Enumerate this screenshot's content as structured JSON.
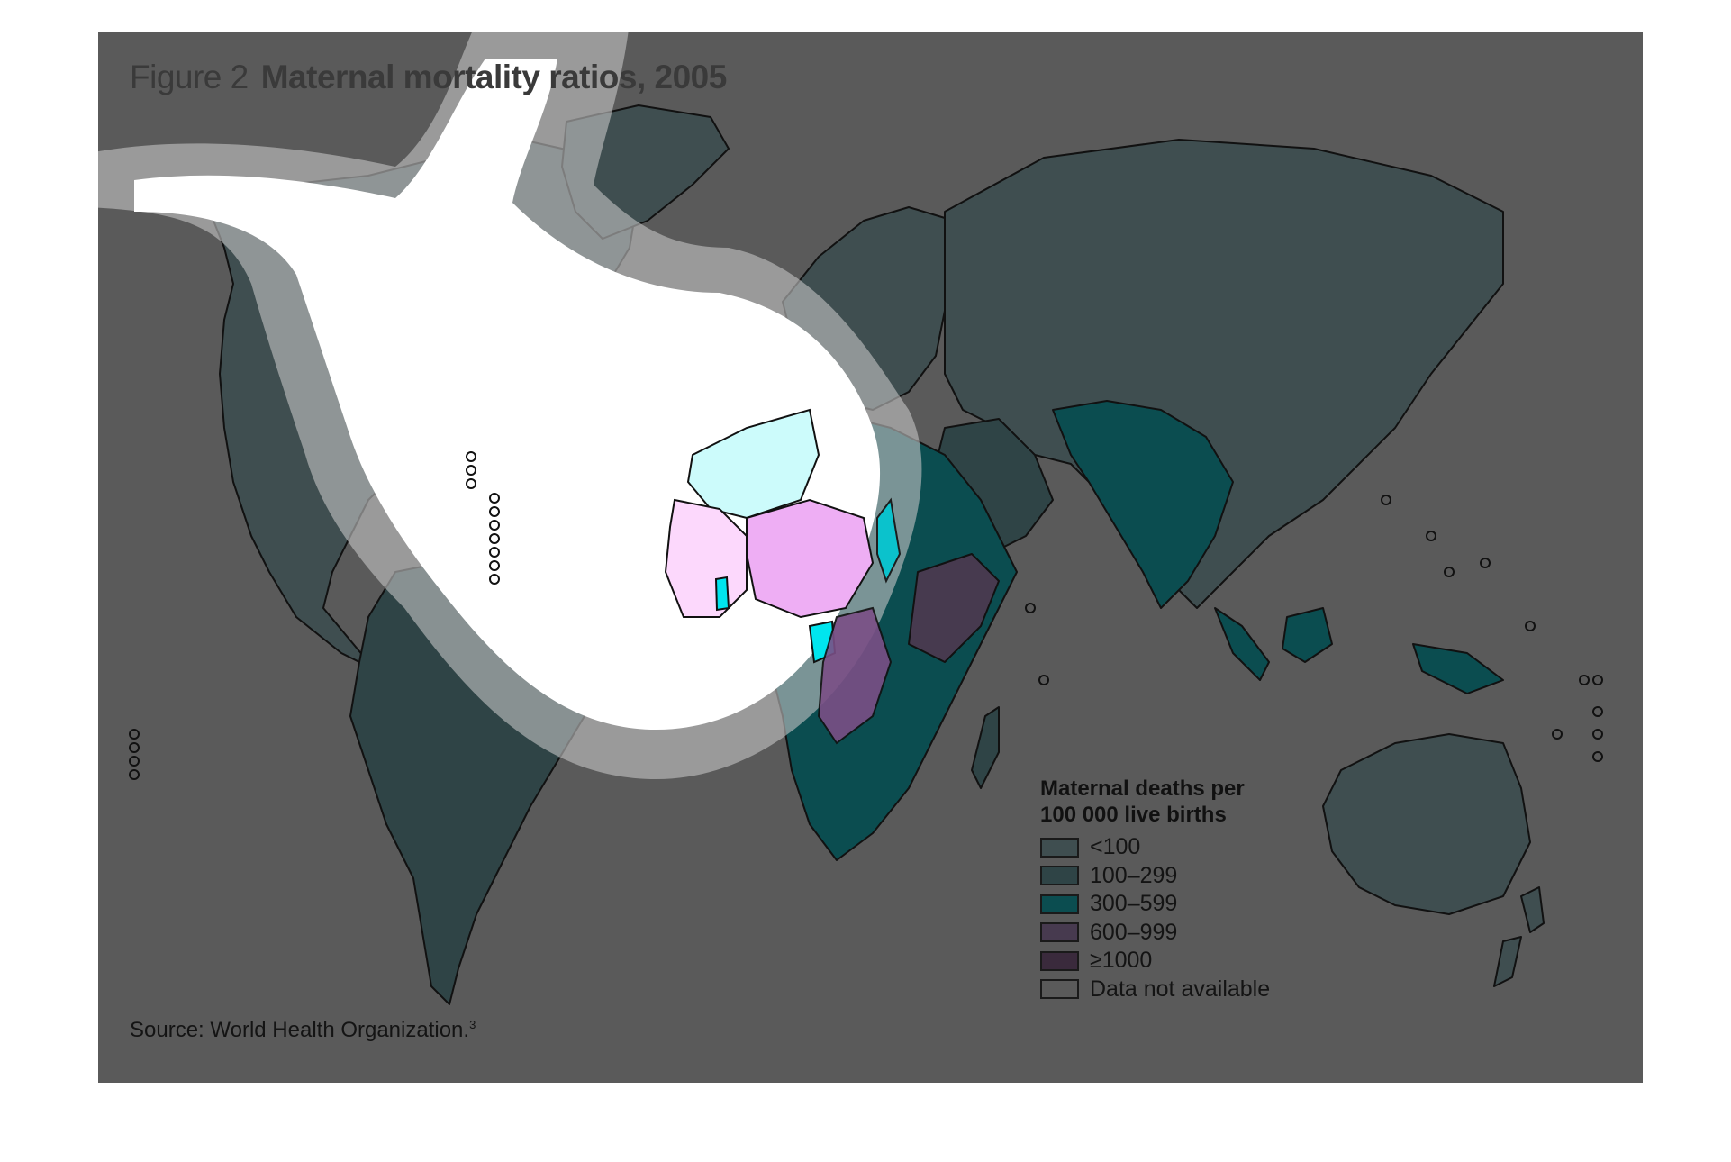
{
  "figure": {
    "label": "Figure 2",
    "title": "Maternal mortality ratios, 2005"
  },
  "legend": {
    "title_line1": "Maternal deaths per",
    "title_line2": "100 000 live births",
    "items": [
      {
        "label": "<100",
        "color": "#3f4e50"
      },
      {
        "label": "100–299",
        "color": "#2f4446"
      },
      {
        "label": "300–599",
        "color": "#0b4d50"
      },
      {
        "label": "600–999",
        "color": "#473a4f"
      },
      {
        "label": "≥1000",
        "color": "#3a2a3c"
      },
      {
        "label": "Data not available",
        "color": "#5a5a5a"
      }
    ]
  },
  "source": {
    "text": "Source: World Health Organization.",
    "note": "3"
  },
  "colors": {
    "background": "#5a5a5a",
    "highlight_white": "#ffffff",
    "highlight_ring": "#c4c4c4",
    "highlight_cyan_light": "#ccfbfb",
    "highlight_cyan": "#00e5ee",
    "highlight_pink_light": "#fcd8fc",
    "highlight_pink": "#eeaef4",
    "highlight_purple": "#7a4f86",
    "ocean_tint_over_land": "#8fa6ab"
  }
}
